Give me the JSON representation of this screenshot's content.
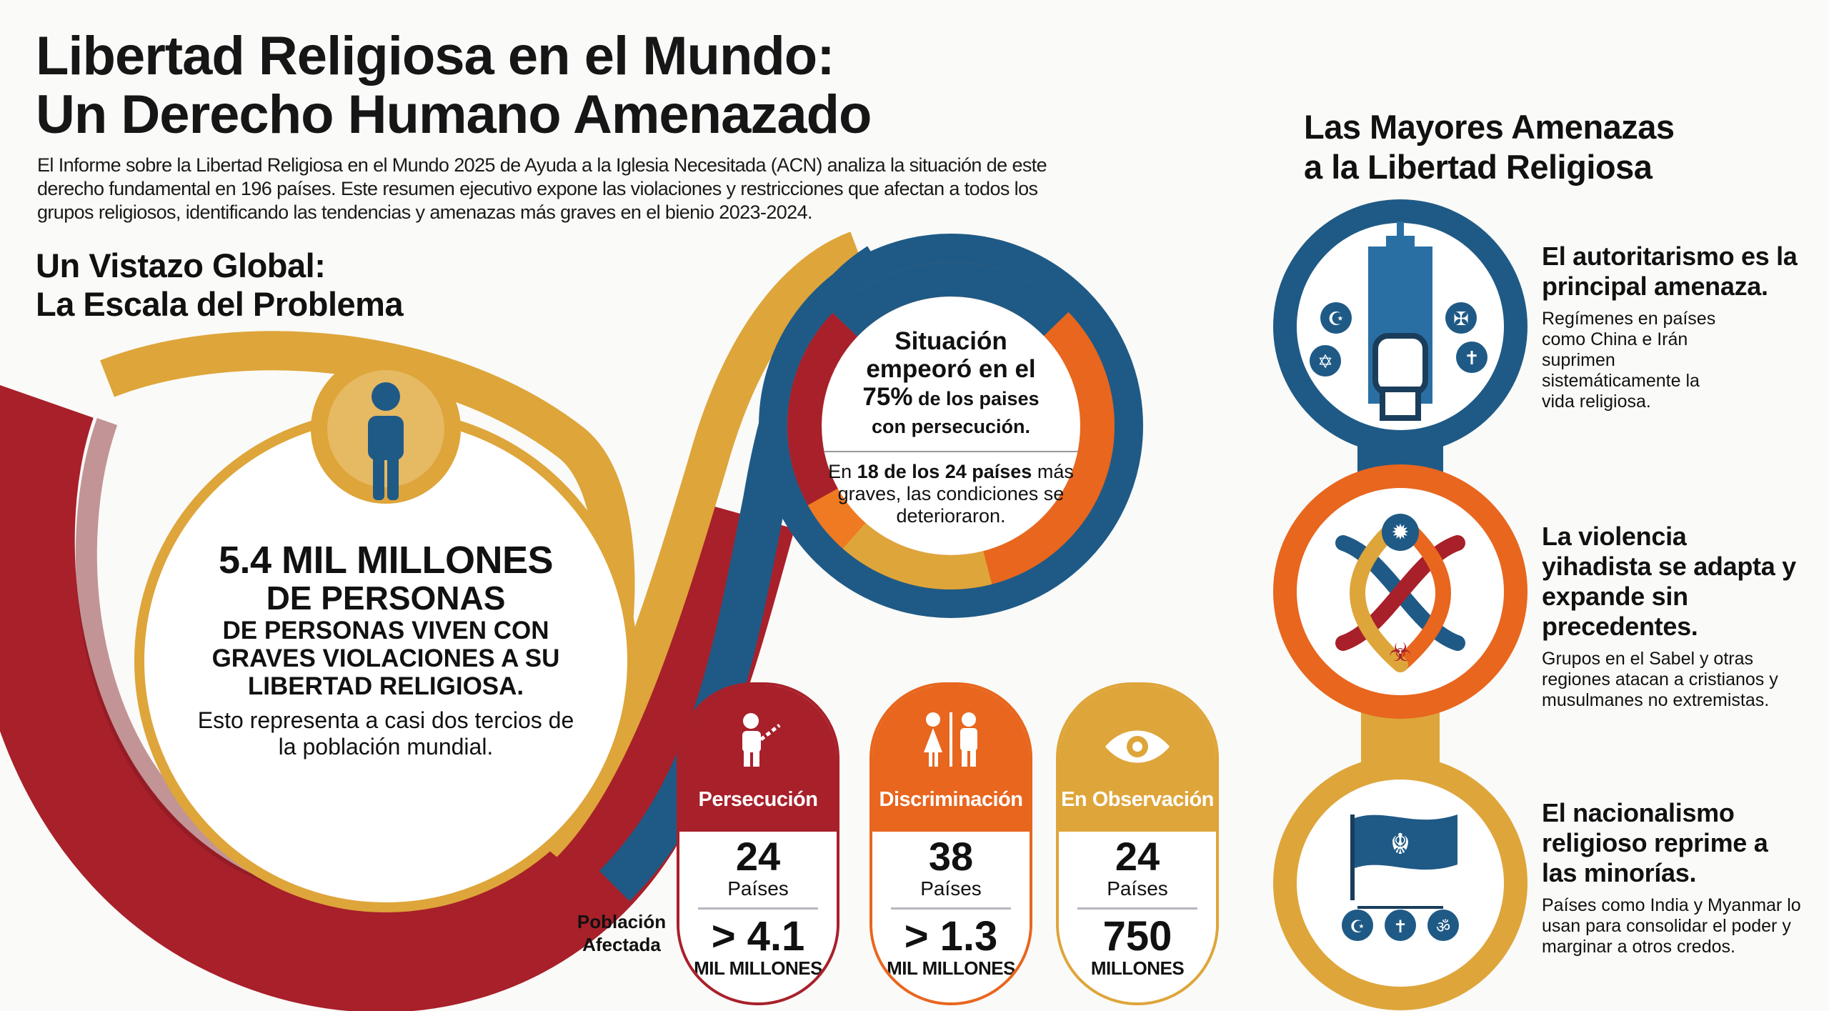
{
  "header": {
    "title_line1": "Libertad Religiosa en el Mundo:",
    "title_line2": "Un Derecho Humano Amenazado",
    "intro": "El Informe sobre la Libertad Religiosa en el Mundo 2025 de Ayuda a la Iglesia Necesitada (ACN) analiza la situación de este derecho fundamental en 196 países. Este resumen ejecutivo expone las violaciones y restricciones que afectan a todos los grupos religiosos, identificando las tendencias y amenazas más graves en el bienio 2023-2024."
  },
  "overview": {
    "heading_line1": "Un Vistazo Global:",
    "heading_line2": "La Escala del Problema",
    "big_number": "5.4 MIL MILLONES",
    "big_number_sub": "DE PERSONAS",
    "big_caption": "DE PERSONAS VIVEN CON GRAVES VIOLACIONES A SU LIBERTAD RELIGIOSA.",
    "big_note": "Esto representa a casi dos tercios de la población mundial.",
    "person_icon": "person-icon"
  },
  "ring": {
    "line1": "Situación",
    "line2": "empeoró en el",
    "pct": "75%",
    "line3": " de los paises",
    "line4": "con persecución.",
    "detail_pre": "En ",
    "detail_bold": "18 de los 24 países",
    "detail_post": " más graves, las condiciones se deterioraron."
  },
  "categories": {
    "population_label": "Población Afectada",
    "items": [
      {
        "label": "Persecución",
        "count": "24",
        "count_unit": "Países",
        "population": "> 4.1",
        "population_unit": "MIL MILLONES",
        "color": "#a8202a",
        "icon": "chained-person-icon"
      },
      {
        "label": "Discriminación",
        "count": "38",
        "count_unit": "Países",
        "population": "> 1.3",
        "population_unit": "MIL MILLONES",
        "color": "#e8661e",
        "icon": "man-woman-icon"
      },
      {
        "label": "En Observación",
        "count": "24",
        "count_unit": "Países",
        "population": "750",
        "population_unit": "MILLONES",
        "color": "#dea53a",
        "icon": "eye-icon"
      }
    ]
  },
  "threats": {
    "heading_line1": "Las Mayores Amenazas",
    "heading_line2": "a la Libertad Religiosa",
    "items": [
      {
        "title": "El autoritarismo es la principal amenaza.",
        "desc": "Regímenes en países como China e Irán suprimen sistemáticamente la vida religiosa.",
        "color": "#1f5a86",
        "icon": "building-fist-icon"
      },
      {
        "title": "La violencia yihadista se adapta y expande sin precedentes.",
        "desc": "Grupos en el Sabel y otras regiones atacan a cristianos y musulmanes no extremistas.",
        "color": "#e8661e",
        "icon": "intertwined-arrows-icon"
      },
      {
        "title": "El nacionalismo religioso reprime a las minorías.",
        "desc": "Países como India y Myanmar lo usan para consolidar el poder y marginar a otros credos.",
        "color": "#dea53a",
        "icon": "flag-religions-icon"
      }
    ]
  },
  "colors": {
    "red": "#a8202a",
    "orange": "#e8661e",
    "gold": "#dea53a",
    "blue": "#1f5a86"
  }
}
